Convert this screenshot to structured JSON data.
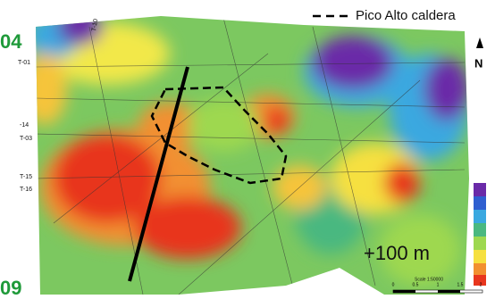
{
  "legend": {
    "label": "Pico Alto caldera"
  },
  "map": {
    "elevation_label": "+100 m",
    "north": "N",
    "edge_labels": [
      "04",
      "09"
    ],
    "profile_labels": [
      "T-01",
      "-14",
      "T-03",
      "T-15",
      "T-16",
      "T-10"
    ],
    "scale": {
      "title": "Scale 1:50000",
      "ticks": [
        "0",
        "0.5",
        "1",
        "1.5",
        "2"
      ]
    }
  }
}
